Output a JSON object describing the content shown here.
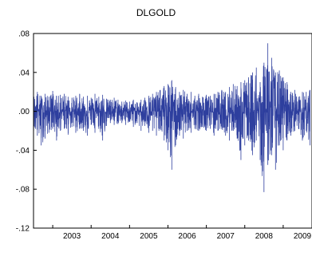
{
  "chart_data": {
    "type": "line",
    "title": "DLGOLD",
    "xlabel": "",
    "ylabel": "",
    "ylim": [
      -0.12,
      0.08
    ],
    "y_ticks": [
      ".08",
      ".04",
      ".00",
      "-.04",
      "-.08",
      "-.12"
    ],
    "y_tick_values": [
      0.08,
      0.04,
      0.0,
      -0.04,
      -0.08,
      -0.12
    ],
    "x_ticks": [
      "2003",
      "2004",
      "2005",
      "2006",
      "2007",
      "2008",
      "2009"
    ],
    "x_range": [
      2002.5,
      2009.75
    ],
    "grid": false,
    "legend": "none",
    "line_color": "#2e3f9e",
    "series": [
      {
        "name": "",
        "x": [
          2002.5,
          2002.6,
          2002.7,
          2002.8,
          2002.9,
          2003.0,
          2003.1,
          2003.2,
          2003.3,
          2003.4,
          2003.5,
          2003.6,
          2003.7,
          2003.8,
          2003.9,
          2004.0,
          2004.1,
          2004.2,
          2004.3,
          2004.4,
          2004.5,
          2004.6,
          2004.7,
          2004.8,
          2004.9,
          2005.0,
          2005.1,
          2005.2,
          2005.3,
          2005.4,
          2005.5,
          2005.6,
          2005.7,
          2005.8,
          2005.9,
          2006.0,
          2006.1,
          2006.2,
          2006.3,
          2006.4,
          2006.5,
          2006.6,
          2006.7,
          2006.8,
          2006.9,
          2007.0,
          2007.1,
          2007.2,
          2007.3,
          2007.4,
          2007.5,
          2007.6,
          2007.7,
          2007.8,
          2007.9,
          2008.0,
          2008.1,
          2008.2,
          2008.3,
          2008.4,
          2008.5,
          2008.6,
          2008.7,
          2008.8,
          2008.9,
          2009.0,
          2009.1,
          2009.2,
          2009.3,
          2009.4,
          2009.5,
          2009.6,
          2009.7
        ],
        "high": [
          0.018,
          0.02,
          0.016,
          0.018,
          0.015,
          0.021,
          0.016,
          0.017,
          0.018,
          0.015,
          0.014,
          0.016,
          0.018,
          0.015,
          0.016,
          0.014,
          0.018,
          0.015,
          0.017,
          0.013,
          0.012,
          0.014,
          0.012,
          0.01,
          0.011,
          0.01,
          0.012,
          0.009,
          0.012,
          0.014,
          0.016,
          0.018,
          0.02,
          0.022,
          0.026,
          0.028,
          0.032,
          0.025,
          0.02,
          0.022,
          0.018,
          0.02,
          0.016,
          0.018,
          0.015,
          0.017,
          0.016,
          0.018,
          0.02,
          0.022,
          0.02,
          0.025,
          0.028,
          0.026,
          0.03,
          0.032,
          0.035,
          0.04,
          0.045,
          0.03,
          0.05,
          0.07,
          0.055,
          0.04,
          0.042,
          0.035,
          0.03,
          0.02,
          0.022,
          0.015,
          0.02,
          0.02,
          0.022
        ],
        "low": [
          -0.02,
          -0.025,
          -0.035,
          -0.028,
          -0.022,
          -0.018,
          -0.03,
          -0.02,
          -0.018,
          -0.024,
          -0.016,
          -0.022,
          -0.018,
          -0.02,
          -0.025,
          -0.014,
          -0.022,
          -0.018,
          -0.03,
          -0.015,
          -0.012,
          -0.014,
          -0.013,
          -0.012,
          -0.014,
          -0.011,
          -0.016,
          -0.012,
          -0.02,
          -0.015,
          -0.022,
          -0.02,
          -0.025,
          -0.018,
          -0.03,
          -0.04,
          -0.06,
          -0.035,
          -0.025,
          -0.028,
          -0.02,
          -0.022,
          -0.018,
          -0.02,
          -0.016,
          -0.02,
          -0.018,
          -0.025,
          -0.02,
          -0.018,
          -0.025,
          -0.03,
          -0.02,
          -0.028,
          -0.05,
          -0.035,
          -0.03,
          -0.045,
          -0.03,
          -0.05,
          -0.083,
          -0.055,
          -0.045,
          -0.06,
          -0.035,
          -0.04,
          -0.03,
          -0.025,
          -0.02,
          -0.018,
          -0.03,
          -0.02,
          -0.035
        ]
      }
    ]
  }
}
